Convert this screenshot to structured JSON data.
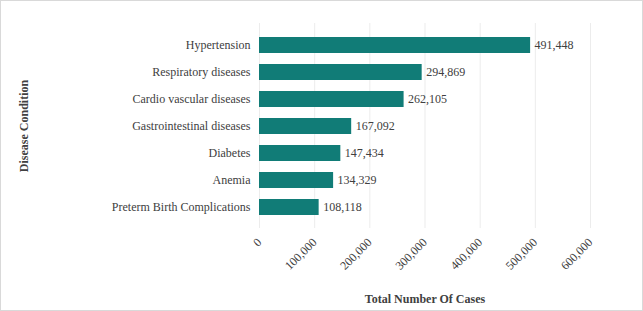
{
  "chart_data": {
    "type": "bar",
    "orientation": "horizontal",
    "xlabel": "Total Number Of Cases",
    "ylabel": "Disease Condition",
    "categories": [
      "Hypertension",
      "Respiratory diseases",
      "Cardio vascular diseases",
      "Gastrointestinal diseases",
      "Diabetes",
      "Anemia",
      "Preterm Birth Complications"
    ],
    "values": [
      491448,
      294869,
      262105,
      167092,
      147434,
      134329,
      108118
    ],
    "value_labels": [
      "491,448",
      "294,869",
      "262,105",
      "167,092",
      "147,434",
      "134,329",
      "108,118"
    ],
    "data_labels": true,
    "color": "#117c77",
    "xlim": [
      0,
      600000
    ],
    "xticks": [
      0,
      {
        "value": 100000,
        "label": "100,000"
      },
      {
        "value": 200000,
        "label": "200,000"
      },
      {
        "value": 300000,
        "label": "300,000"
      },
      {
        "value": 400000,
        "label": "400,000"
      },
      {
        "value": 500000,
        "label": "500,000"
      },
      {
        "value": 600000,
        "label": "600,000"
      }
    ],
    "grid": true
  }
}
